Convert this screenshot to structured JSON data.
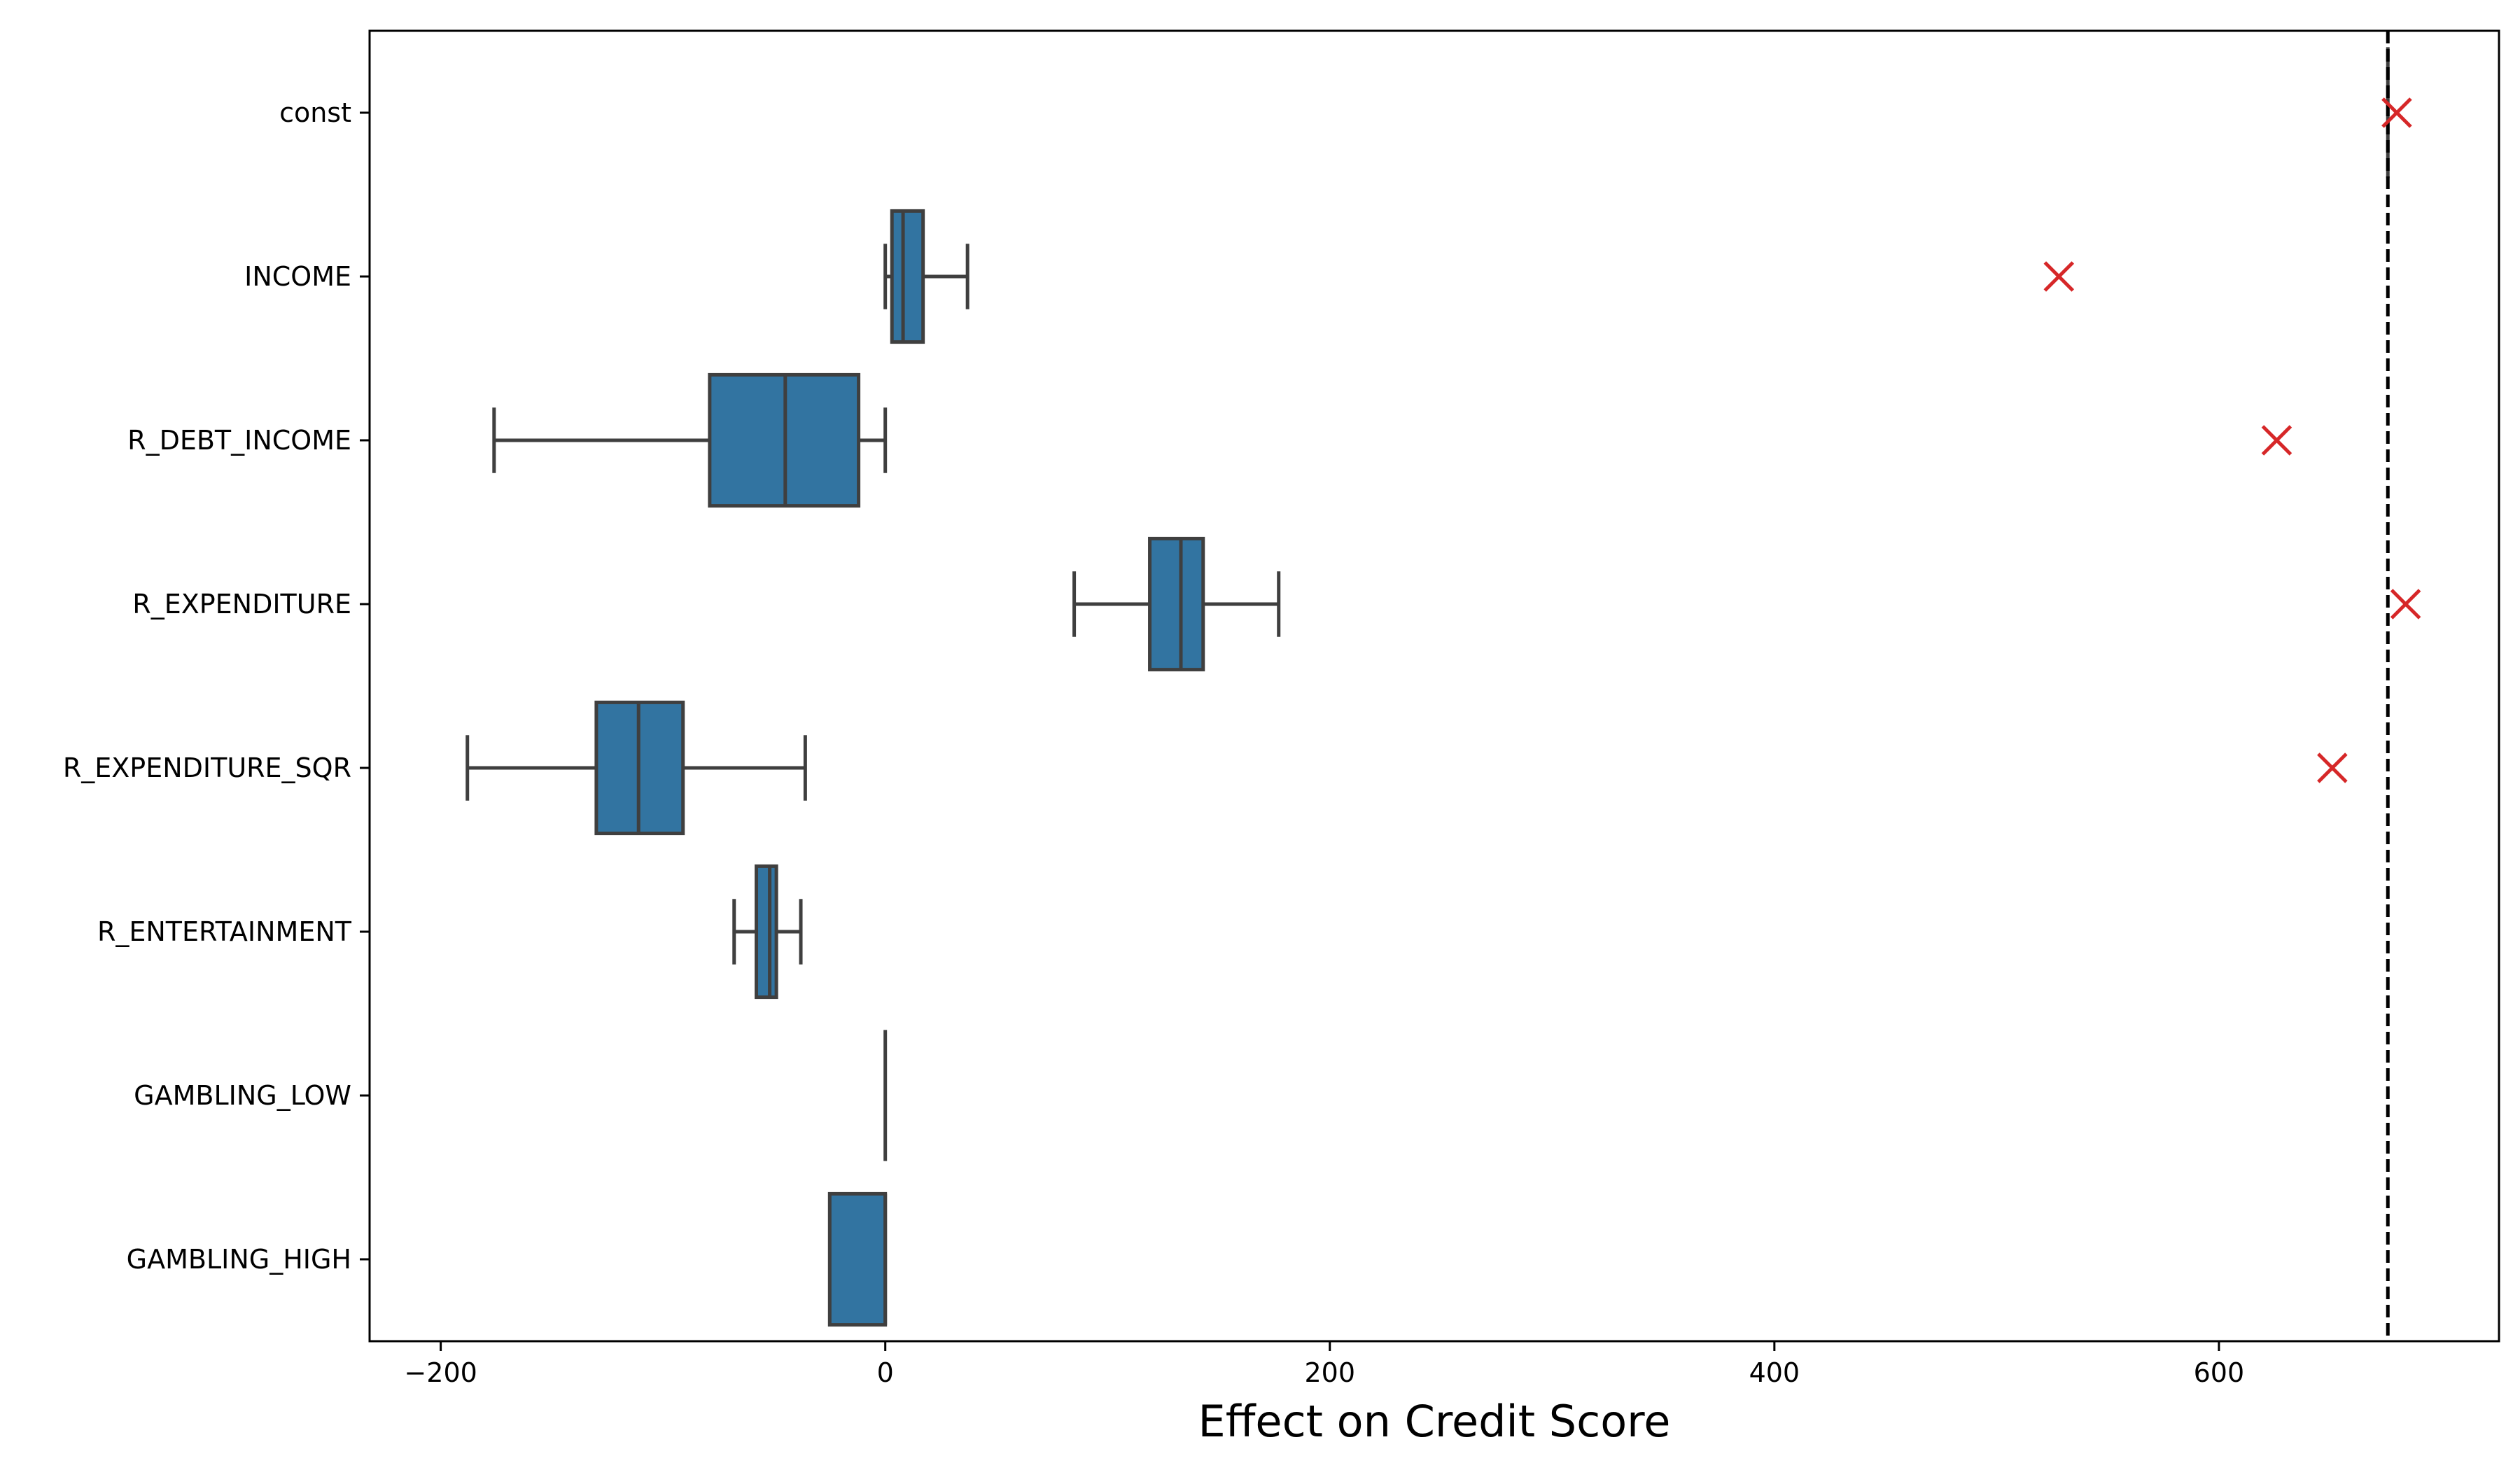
{
  "chart_data": {
    "type": "boxplot",
    "orientation": "horizontal",
    "xlabel": "Effect on Credit Score",
    "ylabel": "",
    "title": "",
    "xlim": [
      -232,
      726
    ],
    "xticks": [
      -200,
      0,
      200,
      400,
      600
    ],
    "xtick_labels": [
      "−200",
      "0",
      "200",
      "400",
      "600"
    ],
    "grid": false,
    "box_color": "#3274a1",
    "line_color": "#3f3f3f",
    "marker_color": "#d62728",
    "reference_line": {
      "x": 676,
      "style": "dashed",
      "color": "#000000"
    },
    "categories": [
      "const",
      "INCOME",
      "R_DEBT_INCOME",
      "R_EXPENDITURE",
      "R_EXPENDITURE_SQR",
      "R_ENTERTAINMENT",
      "GAMBLING_LOW",
      "GAMBLING_HIGH"
    ],
    "boxes": [
      {
        "category": "const",
        "whisker_low": 676,
        "q1": 676,
        "median": 676,
        "q3": 676,
        "whisker_high": 676,
        "marker_x": 680
      },
      {
        "category": "INCOME",
        "whisker_low": 0,
        "q1": 3,
        "median": 8,
        "q3": 17,
        "whisker_high": 37,
        "marker_x": 528
      },
      {
        "category": "R_DEBT_INCOME",
        "whisker_low": -176,
        "q1": -79,
        "median": -45,
        "q3": -12,
        "whisker_high": 0,
        "marker_x": 626
      },
      {
        "category": "R_EXPENDITURE",
        "whisker_low": 85,
        "q1": 119,
        "median": 133,
        "q3": 143,
        "whisker_high": 177,
        "marker_x": 684
      },
      {
        "category": "R_EXPENDITURE_SQR",
        "whisker_low": -188,
        "q1": -130,
        "median": -111,
        "q3": -91,
        "whisker_high": -36,
        "marker_x": 651
      },
      {
        "category": "R_ENTERTAINMENT",
        "whisker_low": -68,
        "q1": -58,
        "median": -52,
        "q3": -49,
        "whisker_high": -38,
        "marker_x": null
      },
      {
        "category": "GAMBLING_LOW",
        "whisker_low": 0,
        "q1": 0,
        "median": 0,
        "q3": 0,
        "whisker_high": 0,
        "marker_x": null
      },
      {
        "category": "GAMBLING_HIGH",
        "whisker_low": -25,
        "q1": -25,
        "median": 0,
        "q3": 0,
        "whisker_high": 0,
        "marker_x": null
      }
    ]
  }
}
